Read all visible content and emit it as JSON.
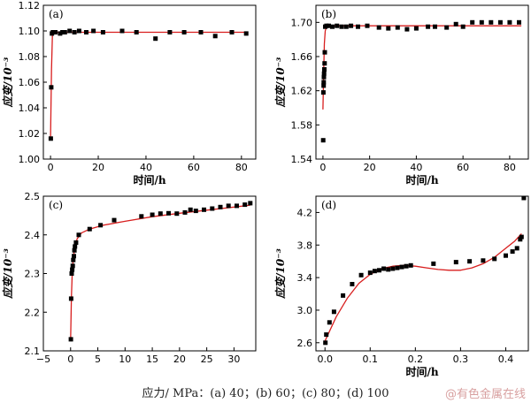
{
  "caption": "应力/ MPa：(a) 40；(b) 60；(c) 80；(d) 100",
  "watermark": "@有色金属在线",
  "colors": {
    "axis": "#000000",
    "marker": "#000000",
    "fit": "#d81e1e"
  },
  "chart_data": [
    {
      "type": "scatter",
      "panel": "(a)",
      "xlabel": "时间/h",
      "ylabel": "应变/10⁻³",
      "xlim": [
        -3,
        86
      ],
      "ylim": [
        1.0,
        1.12
      ],
      "xticks": [
        0,
        20,
        40,
        60,
        80
      ],
      "yticks": [
        1.0,
        1.02,
        1.04,
        1.06,
        1.08,
        1.1,
        1.12
      ],
      "ytick_labels": [
        "1.00",
        "1.02",
        "1.04",
        "1.06",
        "1.08",
        "1.10",
        "1.12"
      ],
      "x": [
        0.1,
        0.3,
        0.6,
        1,
        2,
        4,
        5,
        6,
        8,
        10,
        12,
        15,
        18,
        22,
        30,
        36,
        44,
        50,
        56,
        63,
        69,
        76,
        82
      ],
      "y": [
        1.016,
        1.056,
        1.098,
        1.099,
        1.099,
        1.098,
        1.099,
        1.099,
        1.1,
        1.099,
        1.1,
        1.099,
        1.1,
        1.099,
        1.1,
        1.099,
        1.094,
        1.099,
        1.099,
        1.099,
        1.096,
        1.099,
        1.098
      ],
      "fit": {
        "x": [
          0,
          0.4,
          0.8,
          1.2,
          2,
          4,
          20,
          82
        ],
        "y": [
          1.016,
          1.07,
          1.096,
          1.099,
          1.099,
          1.099,
          1.099,
          1.099
        ]
      }
    },
    {
      "type": "scatter",
      "panel": "(b)",
      "xlabel": "时间/h",
      "ylabel": "应变/10⁻³",
      "xlim": [
        -3,
        88
      ],
      "ylim": [
        1.54,
        1.72
      ],
      "xticks": [
        0,
        20,
        40,
        60,
        80
      ],
      "yticks": [
        1.54,
        1.58,
        1.62,
        1.66,
        1.7
      ],
      "ytick_labels": [
        "1.54",
        "1.58",
        "1.62",
        "1.66",
        "1.70"
      ],
      "x": [
        0.1,
        0.2,
        0.3,
        0.35,
        0.4,
        0.5,
        0.6,
        0.7,
        0.8,
        1.0,
        1.5,
        2.5,
        4,
        6,
        8,
        10,
        12,
        15,
        19,
        24,
        28,
        32,
        36,
        40,
        45,
        48,
        53,
        57,
        60,
        64,
        68,
        72,
        76,
        80,
        84
      ],
      "y": [
        1.562,
        1.618,
        1.626,
        1.63,
        1.636,
        1.64,
        1.645,
        1.652,
        1.665,
        1.695,
        1.696,
        1.696,
        1.695,
        1.696,
        1.695,
        1.695,
        1.696,
        1.695,
        1.696,
        1.694,
        1.693,
        1.694,
        1.692,
        1.693,
        1.695,
        1.695,
        1.694,
        1.698,
        1.695,
        1.7,
        1.7,
        1.7,
        1.7,
        1.7,
        1.7
      ],
      "fit": {
        "x": [
          0,
          0.3,
          0.6,
          1.0,
          1.5,
          2.5,
          5,
          20,
          85
        ],
        "y": [
          1.598,
          1.64,
          1.675,
          1.69,
          1.695,
          1.696,
          1.696,
          1.696,
          1.696
        ]
      }
    },
    {
      "type": "scatter",
      "panel": "(c)",
      "xlabel": "",
      "ylabel": "应变/10⁻³",
      "xlim": [
        -5,
        34
      ],
      "ylim": [
        2.1,
        2.5
      ],
      "xticks": [
        -5,
        0,
        5,
        10,
        15,
        20,
        25,
        30
      ],
      "yticks": [
        2.1,
        2.2,
        2.3,
        2.4,
        2.5
      ],
      "ytick_labels": [
        "2.1",
        "2.2",
        "2.3",
        "2.4",
        "2.5"
      ],
      "x": [
        0.05,
        0.1,
        0.2,
        0.3,
        0.4,
        0.5,
        0.6,
        0.7,
        0.8,
        1.0,
        1.5,
        3.5,
        5.5,
        8,
        13,
        15,
        16.5,
        18,
        19.5,
        21,
        22,
        23,
        24.5,
        26,
        27.5,
        29,
        30.5,
        32,
        33
      ],
      "y": [
        2.13,
        2.235,
        2.3,
        2.31,
        2.32,
        2.335,
        2.345,
        2.36,
        2.37,
        2.38,
        2.4,
        2.415,
        2.425,
        2.438,
        2.448,
        2.452,
        2.455,
        2.456,
        2.455,
        2.458,
        2.465,
        2.462,
        2.465,
        2.468,
        2.472,
        2.475,
        2.475,
        2.478,
        2.482
      ],
      "fit": {
        "x": [
          0,
          0.15,
          0.3,
          0.5,
          0.8,
          1.2,
          2,
          3.5,
          6,
          10,
          15,
          20,
          25,
          30,
          33
        ],
        "y": [
          2.13,
          2.24,
          2.3,
          2.34,
          2.37,
          2.39,
          2.405,
          2.415,
          2.425,
          2.435,
          2.447,
          2.456,
          2.464,
          2.472,
          2.477
        ]
      }
    },
    {
      "type": "scatter",
      "panel": "(d)",
      "xlabel": "时间/h",
      "ylabel": "应变/10⁻³",
      "xlim": [
        -0.02,
        0.45
      ],
      "ylim": [
        2.5,
        4.4
      ],
      "xticks": [
        0.0,
        0.1,
        0.2,
        0.3,
        0.4
      ],
      "xtick_labels": [
        "0.0",
        "0.1",
        "0.2",
        "0.3",
        "0.4"
      ],
      "yticks": [
        2.6,
        3.0,
        3.4,
        3.8,
        4.2
      ],
      "ytick_labels": [
        "2.6",
        "3.0",
        "3.4",
        "3.8",
        "4.2"
      ],
      "x": [
        0.001,
        0.003,
        0.01,
        0.02,
        0.04,
        0.06,
        0.08,
        0.1,
        0.11,
        0.12,
        0.13,
        0.14,
        0.15,
        0.16,
        0.17,
        0.18,
        0.19,
        0.24,
        0.29,
        0.32,
        0.35,
        0.375,
        0.4,
        0.415,
        0.425,
        0.432,
        0.435,
        0.44
      ],
      "y": [
        2.6,
        2.7,
        2.85,
        2.98,
        3.18,
        3.32,
        3.43,
        3.46,
        3.48,
        3.49,
        3.51,
        3.5,
        3.51,
        3.52,
        3.53,
        3.54,
        3.55,
        3.57,
        3.59,
        3.6,
        3.61,
        3.63,
        3.67,
        3.72,
        3.76,
        3.87,
        3.9,
        4.4
      ],
      "fit": {
        "x": [
          0,
          0.025,
          0.05,
          0.075,
          0.1,
          0.125,
          0.15,
          0.175,
          0.2,
          0.225,
          0.25,
          0.275,
          0.3,
          0.325,
          0.35,
          0.375,
          0.4,
          0.42,
          0.435
        ],
        "y": [
          2.62,
          2.92,
          3.15,
          3.33,
          3.44,
          3.51,
          3.54,
          3.55,
          3.54,
          3.52,
          3.5,
          3.49,
          3.49,
          3.52,
          3.57,
          3.65,
          3.76,
          3.85,
          3.94
        ]
      }
    }
  ]
}
